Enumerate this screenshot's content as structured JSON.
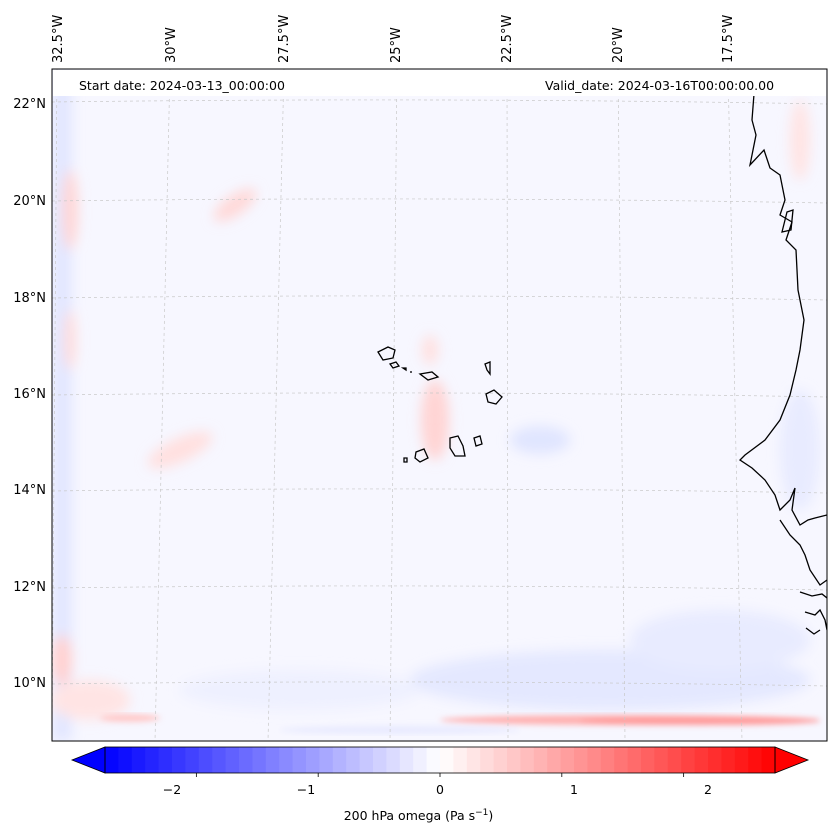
{
  "map": {
    "start_date": "Start date: 2024-03-13_00:00:00",
    "valid_date": "Valid_date: 2024-03-16T00:00:00.00",
    "lon_labels": [
      "32.5°W",
      "30°W",
      "27.5°W",
      "25°W",
      "22.5°W",
      "20°W",
      "17.5°W"
    ],
    "lat_labels": [
      "22°N",
      "20°N",
      "18°N",
      "16°N",
      "14°N",
      "12°N",
      "10°N"
    ],
    "extent": {
      "lon_min": -33.0,
      "lon_max": -15.6,
      "lat_min": 8.8,
      "lat_max": 22.8
    },
    "features": [
      "coastline-west-africa",
      "cape-verde-islands",
      "gridlines-dashed"
    ]
  },
  "colorbar": {
    "label_main": "200 hPa omega (Pa s",
    "label_sup": "−1",
    "label_end": ")",
    "tick_values": [
      -2,
      -1,
      0,
      1,
      2
    ],
    "tick_labels": [
      "−2",
      "−1",
      "0",
      "1",
      "2"
    ],
    "range": [
      -2.75,
      2.75
    ],
    "extend": "both",
    "colormap": "bwr",
    "color_low": "#0000ff",
    "color_mid": "#ffffff",
    "color_high": "#ff0000"
  }
}
